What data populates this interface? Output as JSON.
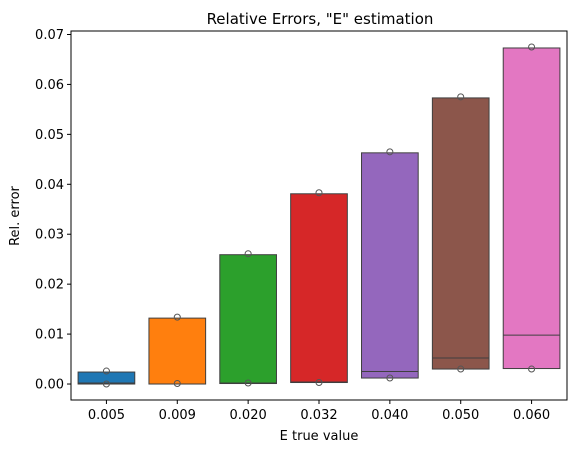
{
  "chart_data": {
    "type": "boxplot",
    "title": "Relative Errors, \"E\" estimation",
    "xlabel": "E true value",
    "ylabel": "Rel. error",
    "ylim": [
      -0.0032,
      0.0707
    ],
    "yticks": [
      0.0,
      0.01,
      0.02,
      0.03,
      0.04,
      0.05,
      0.06,
      0.07
    ],
    "ytick_labels": [
      "0.00",
      "0.01",
      "0.02",
      "0.03",
      "0.04",
      "0.05",
      "0.06",
      "0.07"
    ],
    "grid": false,
    "categories": [
      "0.005",
      "0.009",
      "0.020",
      "0.032",
      "0.040",
      "0.050",
      "0.060"
    ],
    "boxes": [
      {
        "q1": 0.0,
        "median": 0.0002,
        "q3": 0.0024,
        "outliers": [
          0.0026,
          0.0
        ],
        "color": "#1f77b4"
      },
      {
        "q1": 0.0,
        "median": 0.0,
        "q3": 0.0132,
        "outliers": [
          0.0134,
          0.0001
        ],
        "color": "#ff7f0e"
      },
      {
        "q1": 0.0001,
        "median": 0.0002,
        "q3": 0.0259,
        "outliers": [
          0.0261,
          0.0002
        ],
        "color": "#2ca02c"
      },
      {
        "q1": 0.0003,
        "median": 0.0004,
        "q3": 0.0381,
        "outliers": [
          0.0383,
          0.0003
        ],
        "color": "#d62728"
      },
      {
        "q1": 0.0012,
        "median": 0.0025,
        "q3": 0.0463,
        "outliers": [
          0.0465,
          0.0012
        ],
        "color": "#9467bd"
      },
      {
        "q1": 0.003,
        "median": 0.0052,
        "q3": 0.0573,
        "outliers": [
          0.0575,
          0.003
        ],
        "color": "#8c564b"
      },
      {
        "q1": 0.0031,
        "median": 0.0098,
        "q3": 0.0673,
        "outliers": [
          0.0675,
          0.003
        ],
        "color": "#e377c2"
      }
    ]
  }
}
